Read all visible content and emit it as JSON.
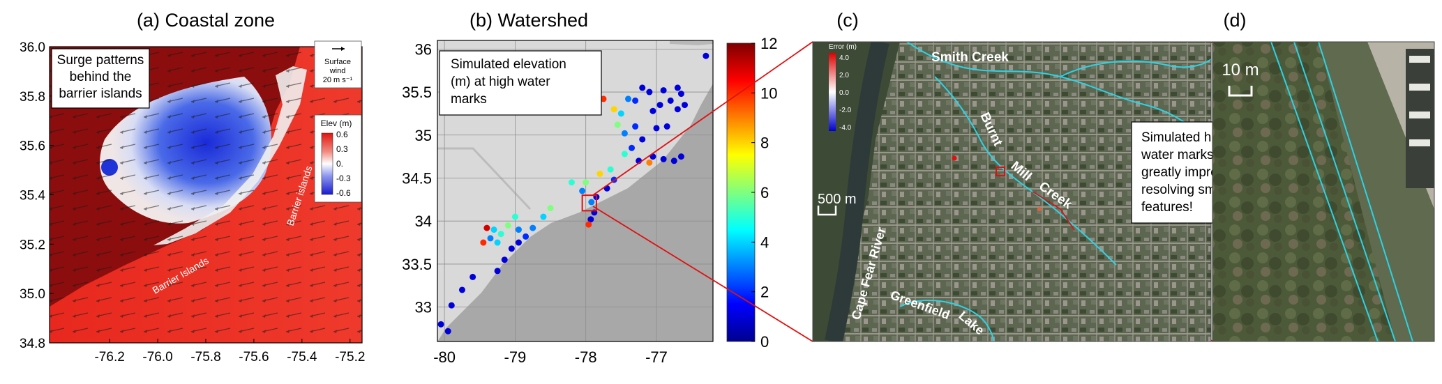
{
  "figure": {
    "panel_a": {
      "title": "(a) Coastal zone",
      "annotation": [
        "Surge patterns",
        "behind the",
        "barrier islands"
      ],
      "wind_legend": [
        "Surface",
        "wind",
        "20 m s⁻¹"
      ],
      "barrier_labels": [
        "Barrier Islands",
        "Barrier islands"
      ],
      "colorbar": {
        "title": "Elev (m)",
        "ticks": [
          "0.6",
          "0.3",
          "0.",
          "-0.3",
          "-0.6"
        ]
      }
    },
    "panel_b": {
      "title": "(b) Watershed",
      "annotation": [
        "Simulated elevation",
        "(m) at high water",
        "marks"
      ]
    },
    "panel_c": {
      "title": "(c)",
      "error_legend": {
        "title": "Error (m)",
        "ticks": [
          "4.0",
          "2.0",
          "0.0",
          "-2.0",
          "-4.0"
        ]
      },
      "scale_bar": "500 m",
      "place_labels": [
        "Smith Creek",
        "Burnt",
        "Mill",
        "Creek",
        "Cape Fear River",
        "Greenfield",
        "Lake"
      ]
    },
    "panel_d": {
      "title": "(d)",
      "scale_bar": "10 m",
      "annotation": [
        "Simulated high",
        "water marks",
        "greatly improved by",
        "resolving small",
        "features!"
      ]
    }
  },
  "colors": {
    "land_red": "#e8281e",
    "dark_red": "#8c0d0d",
    "surge_blue": "#1e2fd8",
    "panel_b_land": "#d9d9d9",
    "panel_b_sea": "#a8a8a8",
    "link_line": "#e01010",
    "creek_cyan": "#2ad4e6",
    "imagery_green": "#4a5a40"
  },
  "chart_data": [
    {
      "panel": "a",
      "type": "heatmap",
      "title": "(a) Coastal zone",
      "xlabel": "",
      "ylabel": "",
      "xlim": [
        -76.45,
        -75.15
      ],
      "ylim": [
        34.8,
        36.0
      ],
      "x_ticks": [
        -76.2,
        -76.0,
        -75.8,
        -75.6,
        -75.4,
        -75.2
      ],
      "y_ticks": [
        34.8,
        35.0,
        35.2,
        35.4,
        35.6,
        35.8,
        36.0
      ],
      "x_tick_labels": [
        "-76.2",
        "-76.0",
        "-75.8",
        "-75.6",
        "-75.4",
        "-75.2"
      ],
      "y_tick_labels": [
        "34.8",
        "35.0",
        "35.2",
        "35.4",
        "35.6",
        "35.8",
        "36.0"
      ],
      "colorbar": {
        "label": "Elev (m)",
        "range": [
          -0.6,
          0.6
        ],
        "ticks": [
          0.6,
          0.3,
          0.0,
          -0.3,
          -0.6
        ]
      }
    },
    {
      "panel": "b",
      "type": "scatter",
      "title": "(b) Watershed",
      "xlabel": "",
      "ylabel": "",
      "xlim": [
        -80.1,
        -76.2
      ],
      "ylim": [
        32.6,
        36.1
      ],
      "x_ticks": [
        -80,
        -79,
        -78,
        -77
      ],
      "y_ticks": [
        33,
        33.5,
        34,
        34.5,
        35,
        35.5,
        36
      ],
      "x_tick_labels": [
        "-80",
        "-79",
        "-78",
        "-77"
      ],
      "y_tick_labels": [
        "33",
        "33.5",
        "34",
        "34.5",
        "35",
        "35.5",
        "36"
      ],
      "colorbar": {
        "label": "Simulated elevation (m) at high water marks",
        "range": [
          0,
          12
        ],
        "ticks": [
          0,
          2,
          4,
          6,
          8,
          10,
          12
        ]
      },
      "points": [
        {
          "x": -76.3,
          "y": 35.92,
          "v": 1
        },
        {
          "x": -77.2,
          "y": 35.55,
          "v": 1
        },
        {
          "x": -77.1,
          "y": 35.5,
          "v": 1
        },
        {
          "x": -76.9,
          "y": 35.52,
          "v": 1
        },
        {
          "x": -76.7,
          "y": 35.55,
          "v": 1
        },
        {
          "x": -76.65,
          "y": 35.48,
          "v": 1
        },
        {
          "x": -76.8,
          "y": 35.4,
          "v": 1
        },
        {
          "x": -77.4,
          "y": 35.42,
          "v": 3
        },
        {
          "x": -77.3,
          "y": 35.4,
          "v": 2
        },
        {
          "x": -76.95,
          "y": 35.35,
          "v": 1
        },
        {
          "x": -76.7,
          "y": 35.3,
          "v": 1
        },
        {
          "x": -76.6,
          "y": 35.35,
          "v": 1
        },
        {
          "x": -77.05,
          "y": 35.28,
          "v": 1
        },
        {
          "x": -77.75,
          "y": 35.42,
          "v": 10
        },
        {
          "x": -77.6,
          "y": 35.3,
          "v": 8
        },
        {
          "x": -77.55,
          "y": 35.12,
          "v": 6
        },
        {
          "x": -77.5,
          "y": 35.25,
          "v": 4
        },
        {
          "x": -77.3,
          "y": 35.1,
          "v": 2
        },
        {
          "x": -77.0,
          "y": 35.08,
          "v": 1
        },
        {
          "x": -76.85,
          "y": 35.1,
          "v": 1
        },
        {
          "x": -77.45,
          "y": 35.02,
          "v": 3
        },
        {
          "x": -77.2,
          "y": 34.95,
          "v": 1
        },
        {
          "x": -77.35,
          "y": 34.85,
          "v": 2
        },
        {
          "x": -77.45,
          "y": 34.78,
          "v": 5
        },
        {
          "x": -77.25,
          "y": 34.7,
          "v": 1
        },
        {
          "x": -77.05,
          "y": 34.75,
          "v": 1
        },
        {
          "x": -76.9,
          "y": 34.72,
          "v": 1
        },
        {
          "x": -76.75,
          "y": 34.7,
          "v": 1
        },
        {
          "x": -76.65,
          "y": 34.75,
          "v": 1
        },
        {
          "x": -77.1,
          "y": 34.68,
          "v": 9
        },
        {
          "x": -77.65,
          "y": 34.6,
          "v": 5
        },
        {
          "x": -77.8,
          "y": 34.55,
          "v": 8
        },
        {
          "x": -78.0,
          "y": 34.45,
          "v": 6
        },
        {
          "x": -78.2,
          "y": 34.45,
          "v": 5
        },
        {
          "x": -78.05,
          "y": 34.35,
          "v": 3
        },
        {
          "x": -77.6,
          "y": 34.48,
          "v": 2
        },
        {
          "x": -77.7,
          "y": 34.38,
          "v": 1
        },
        {
          "x": -77.85,
          "y": 34.28,
          "v": 1
        },
        {
          "x": -77.92,
          "y": 34.22,
          "v": 3
        },
        {
          "x": -77.88,
          "y": 34.1,
          "v": 1
        },
        {
          "x": -77.93,
          "y": 34.02,
          "v": 1
        },
        {
          "x": -77.96,
          "y": 33.96,
          "v": 10
        },
        {
          "x": -78.5,
          "y": 34.15,
          "v": 6
        },
        {
          "x": -78.6,
          "y": 34.05,
          "v": 4
        },
        {
          "x": -78.75,
          "y": 33.92,
          "v": 3
        },
        {
          "x": -78.85,
          "y": 33.82,
          "v": 2
        },
        {
          "x": -78.95,
          "y": 33.75,
          "v": 1
        },
        {
          "x": -79.05,
          "y": 33.68,
          "v": 1
        },
        {
          "x": -79.15,
          "y": 33.55,
          "v": 1
        },
        {
          "x": -79.25,
          "y": 33.42,
          "v": 1
        },
        {
          "x": -79.1,
          "y": 33.95,
          "v": 6
        },
        {
          "x": -79.3,
          "y": 33.9,
          "v": 4
        },
        {
          "x": -79.2,
          "y": 33.85,
          "v": 5
        },
        {
          "x": -79.35,
          "y": 33.8,
          "v": 3
        },
        {
          "x": -79.25,
          "y": 33.75,
          "v": 4
        },
        {
          "x": -79.4,
          "y": 33.92,
          "v": 11
        },
        {
          "x": -79.45,
          "y": 33.75,
          "v": 10
        },
        {
          "x": -78.95,
          "y": 33.9,
          "v": 3
        },
        {
          "x": -79.0,
          "y": 34.05,
          "v": 5
        },
        {
          "x": -79.6,
          "y": 33.35,
          "v": 1
        },
        {
          "x": -79.75,
          "y": 33.2,
          "v": 1
        },
        {
          "x": -79.9,
          "y": 33.02,
          "v": 1
        },
        {
          "x": -80.05,
          "y": 32.8,
          "v": 1
        },
        {
          "x": -79.95,
          "y": 32.72,
          "v": 1
        }
      ],
      "zoom_box": {
        "x": [
          -78.05,
          -77.85
        ],
        "y": [
          34.12,
          34.3
        ]
      }
    }
  ]
}
